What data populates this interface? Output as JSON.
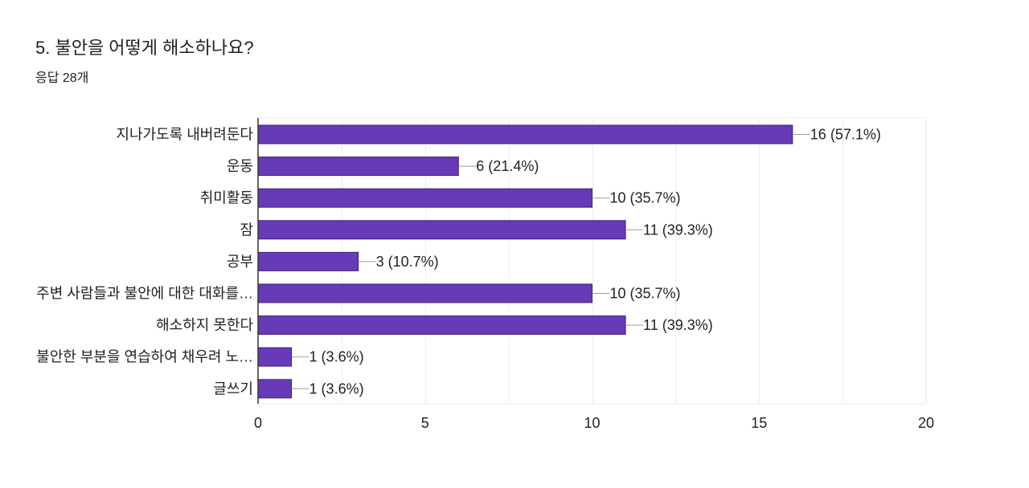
{
  "question": {
    "title": "5. 불안을 어떻게 해소하나요?",
    "response_count": "응답 28개"
  },
  "colors": {
    "bar": "#673ab7",
    "bar_stroke": "#3d1f7a",
    "grid": "#eeeeee",
    "axis": "#333333",
    "leader": "#9e9e9e"
  },
  "chart_data": {
    "type": "bar",
    "orientation": "horizontal",
    "categories": [
      "지나가도록 내버려둔다",
      "운동",
      "취미활동",
      "잠",
      "공부",
      "주변 사람들과 불안에 대한 대화를…",
      "해소하지 못한다",
      "불안한 부분을 연습하여 채우려 노…",
      "글쓰기"
    ],
    "values": [
      16,
      6,
      10,
      11,
      3,
      10,
      11,
      1,
      1
    ],
    "value_labels": [
      "16 (57.1%)",
      "6 (21.4%)",
      "10 (35.7%)",
      "11 (39.3%)",
      "3 (10.7%)",
      "10 (35.7%)",
      "11 (39.3%)",
      "1 (3.6%)",
      "1 (3.6%)"
    ],
    "xlim": [
      0,
      20
    ],
    "xticks": [
      0,
      5,
      10,
      15,
      20
    ],
    "minor_grid_step": 2.5,
    "grid": true,
    "title": "",
    "xlabel": "",
    "ylabel": ""
  }
}
